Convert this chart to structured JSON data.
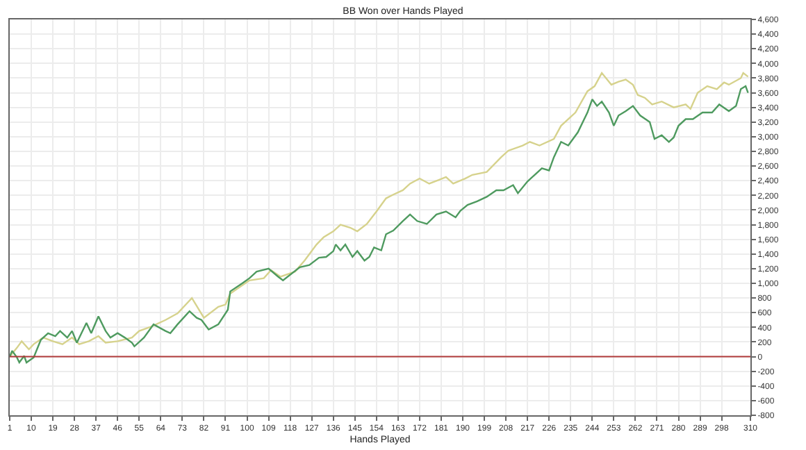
{
  "chart_data": {
    "type": "line",
    "title": "BB Won over Hands Played",
    "xlabel": "Hands Played",
    "xlim": [
      1,
      310
    ],
    "xticks": [
      1,
      10,
      19,
      28,
      37,
      46,
      55,
      64,
      73,
      82,
      91,
      100,
      109,
      118,
      127,
      136,
      145,
      154,
      163,
      172,
      181,
      190,
      199,
      208,
      217,
      226,
      235,
      244,
      253,
      262,
      271,
      280,
      289,
      298,
      310
    ],
    "ylim": [
      -800,
      4600
    ],
    "yticks": [
      -800,
      -600,
      -400,
      -200,
      0,
      200,
      400,
      600,
      800,
      {
        "value": 1000,
        "label": "1,000"
      },
      {
        "value": 1200,
        "label": "1,200"
      },
      {
        "value": 1400,
        "label": "1,400"
      },
      {
        "value": 1600,
        "label": "1,600"
      },
      {
        "value": 1800,
        "label": "1,800"
      },
      {
        "value": 2000,
        "label": "2,000"
      },
      {
        "value": 2200,
        "label": "2,200"
      },
      {
        "value": 2400,
        "label": "2,400"
      },
      {
        "value": 2600,
        "label": "2,600"
      },
      {
        "value": 2800,
        "label": "2,800"
      },
      {
        "value": 3000,
        "label": "3,000"
      },
      {
        "value": 3200,
        "label": "3,200"
      },
      {
        "value": 3400,
        "label": "3,400"
      },
      {
        "value": 3600,
        "label": "3,600"
      },
      {
        "value": 3800,
        "label": "3,800"
      },
      {
        "value": 4000,
        "label": "4,000"
      },
      {
        "value": 4200,
        "label": "4,200"
      },
      {
        "value": 4400,
        "label": "4,400"
      },
      {
        "value": 4600,
        "label": "4,600"
      }
    ],
    "grid": true,
    "marker": "none",
    "line_style": "solid",
    "ref_lines": [
      {
        "axis": "y",
        "value": 0,
        "color": "#b03a3a"
      }
    ],
    "series": [
      {
        "color": "#d6d28c",
        "x": [
          1,
          4,
          6,
          9,
          11,
          15,
          19,
          23,
          27,
          30,
          34,
          38,
          41,
          46,
          52,
          55,
          60,
          66,
          71,
          77,
          82,
          88,
          91,
          93,
          101,
          107,
          110,
          114,
          120,
          124,
          129,
          132,
          136,
          139,
          143,
          146,
          150,
          154,
          158,
          161,
          165,
          168,
          172,
          176,
          180,
          183,
          186,
          191,
          194,
          200,
          206,
          209,
          215,
          218,
          222,
          228,
          231,
          237,
          242,
          245,
          248,
          252,
          255,
          258,
          261,
          263,
          266,
          269,
          273,
          278,
          283,
          285,
          288,
          292,
          296,
          299,
          301,
          306,
          307,
          309
        ],
        "values": [
          0,
          120,
          210,
          100,
          170,
          260,
          210,
          170,
          260,
          170,
          210,
          280,
          190,
          210,
          260,
          350,
          410,
          500,
          590,
          800,
          530,
          680,
          710,
          860,
          1040,
          1070,
          1180,
          1090,
          1160,
          1310,
          1530,
          1630,
          1710,
          1800,
          1760,
          1710,
          1810,
          1980,
          2160,
          2210,
          2270,
          2360,
          2430,
          2360,
          2410,
          2450,
          2360,
          2430,
          2480,
          2520,
          2720,
          2810,
          2880,
          2930,
          2880,
          2970,
          3150,
          3330,
          3620,
          3690,
          3870,
          3710,
          3750,
          3780,
          3710,
          3570,
          3530,
          3440,
          3480,
          3400,
          3440,
          3380,
          3600,
          3690,
          3650,
          3740,
          3710,
          3800,
          3870,
          3820
        ]
      },
      {
        "color": "#4e9a5f",
        "x": [
          1,
          2,
          4,
          5,
          7,
          8,
          11,
          14,
          17,
          20,
          22,
          25,
          27,
          29,
          33,
          35,
          38,
          41,
          43,
          46,
          49,
          52,
          53,
          57,
          61,
          66,
          68,
          71,
          76,
          79,
          81,
          84,
          88,
          92,
          93,
          98,
          101,
          104,
          109,
          113,
          115,
          122,
          126,
          130,
          133,
          136,
          137,
          139,
          141,
          144,
          146,
          149,
          151,
          153,
          156,
          158,
          161,
          165,
          168,
          171,
          175,
          179,
          183,
          187,
          189,
          192,
          196,
          200,
          204,
          207,
          211,
          213,
          217,
          220,
          223,
          226,
          228,
          231,
          234,
          238,
          242,
          244,
          246,
          248,
          251,
          253,
          255,
          258,
          261,
          264,
          268,
          270,
          273,
          276,
          278,
          280,
          283,
          286,
          290,
          294,
          297,
          301,
          304,
          306,
          308,
          309
        ],
        "values": [
          0,
          80,
          -10,
          -80,
          10,
          -80,
          -10,
          230,
          320,
          280,
          350,
          260,
          350,
          190,
          460,
          320,
          550,
          350,
          260,
          320,
          260,
          190,
          140,
          260,
          440,
          350,
          320,
          440,
          620,
          530,
          500,
          370,
          440,
          640,
          890,
          1000,
          1070,
          1160,
          1200,
          1090,
          1040,
          1220,
          1250,
          1350,
          1360,
          1440,
          1530,
          1450,
          1530,
          1360,
          1440,
          1310,
          1360,
          1490,
          1450,
          1670,
          1720,
          1850,
          1940,
          1850,
          1810,
          1940,
          1980,
          1900,
          1990,
          2070,
          2120,
          2180,
          2270,
          2270,
          2340,
          2230,
          2390,
          2480,
          2570,
          2540,
          2720,
          2930,
          2880,
          3060,
          3330,
          3510,
          3420,
          3480,
          3330,
          3150,
          3290,
          3350,
          3420,
          3290,
          3200,
          2970,
          3020,
          2930,
          2990,
          3150,
          3240,
          3240,
          3330,
          3330,
          3440,
          3350,
          3420,
          3650,
          3690,
          3600
        ]
      }
    ]
  }
}
